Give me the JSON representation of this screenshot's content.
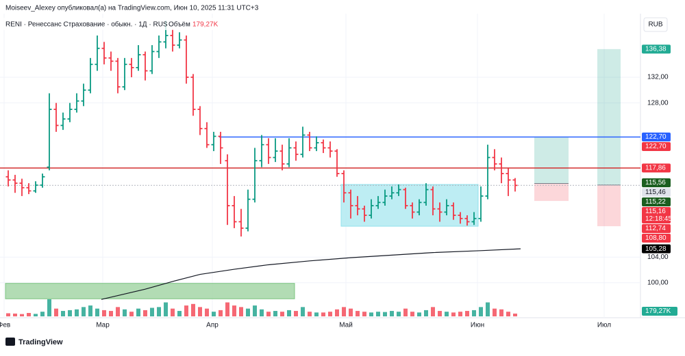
{
  "header": {
    "publisher": "Moiseev_Alexey опубликовал(а) на TradingView.com, Июн 10, 2025 11:31 UTC+3",
    "symbol": "RENI · Ренессанс Страхование · обыкн. · 1Д · RUS",
    "volume_title": "Объём"
  },
  "currency": "RUB",
  "brand": "TradingView",
  "chart_data": {
    "type": "ohlc",
    "up_color": "#089981",
    "down_color": "#f23645",
    "xlim": [
      -1.2,
      92.3
    ],
    "ylim": [
      94.55,
      141.9
    ],
    "xticks": [
      {
        "value": -0.6,
        "label": "Фев"
      },
      {
        "value": 13.8,
        "label": "Мар"
      },
      {
        "value": 29.8,
        "label": "Апр"
      },
      {
        "value": 49.3,
        "label": "Май"
      },
      {
        "value": 68.5,
        "label": "Июн"
      },
      {
        "value": 87,
        "label": "Июл"
      }
    ],
    "yticks": [
      {
        "value": 100,
        "label": "100,00"
      },
      {
        "value": 104,
        "label": "104,00"
      },
      {
        "value": 128,
        "label": "128,00"
      },
      {
        "value": 132,
        "label": "132,00"
      }
    ],
    "ohlc": [
      [
        116.5,
        117.5,
        115,
        116
      ],
      [
        116,
        116.8,
        114,
        115.5
      ],
      [
        115.5,
        116.2,
        113.5,
        114.8
      ],
      [
        114.8,
        115.5,
        113.8,
        114.3
      ],
      [
        114.3,
        115.8,
        114,
        115.2
      ],
      [
        115.2,
        117,
        114.8,
        116.5
      ],
      [
        118,
        129.5,
        117.5,
        127
      ],
      [
        127,
        128,
        123.5,
        124.5
      ],
      [
        124.5,
        126.5,
        123.8,
        125.5
      ],
      [
        125.5,
        128,
        125,
        127
      ],
      [
        127,
        129.5,
        126.5,
        128.3
      ],
      [
        128.3,
        131,
        127.5,
        130
      ],
      [
        130,
        135,
        129.5,
        134
      ],
      [
        134,
        138.5,
        133,
        136.5
      ],
      [
        136.5,
        137.5,
        134,
        135
      ],
      [
        135,
        136,
        133,
        134.5
      ],
      [
        134.5,
        135,
        129.5,
        130.5
      ],
      [
        130.5,
        135,
        130,
        134
      ],
      [
        134,
        135,
        132,
        133.5
      ],
      [
        133.5,
        137,
        133,
        135.5
      ],
      [
        135.5,
        136,
        131.5,
        133
      ],
      [
        133,
        137,
        132.5,
        136
      ],
      [
        136,
        138.5,
        135,
        137.5
      ],
      [
        137.5,
        140.8,
        136.5,
        138.5
      ],
      [
        138.5,
        139.5,
        136,
        137
      ],
      [
        137,
        139,
        136.5,
        137.8
      ],
      [
        137.8,
        138.5,
        131,
        132
      ],
      [
        132,
        132.5,
        126,
        127
      ],
      [
        127,
        127.5,
        123,
        124
      ],
      [
        124,
        125,
        121,
        121.5
      ],
      [
        121.5,
        123.5,
        120.5,
        122.8
      ],
      [
        122.8,
        123.5,
        118.5,
        121
      ],
      [
        119,
        120,
        109,
        112
      ],
      [
        112,
        113.5,
        108.5,
        109.5
      ],
      [
        109.5,
        111.5,
        107.2,
        108.5
      ],
      [
        108.5,
        114.5,
        108,
        113
      ],
      [
        113,
        121,
        112.5,
        119
      ],
      [
        119,
        123,
        118,
        121.5
      ],
      [
        121.5,
        122.5,
        118.5,
        119.5
      ],
      [
        119.5,
        122.5,
        118.8,
        120.5
      ],
      [
        120.5,
        121.5,
        117.5,
        118.5
      ],
      [
        118.5,
        122.5,
        118,
        121
      ],
      [
        121,
        122,
        119,
        120
      ],
      [
        120,
        124.3,
        119.5,
        123
      ],
      [
        123,
        123.5,
        120.5,
        121
      ],
      [
        121,
        122.8,
        120.5,
        121.8
      ],
      [
        121.8,
        122.3,
        120.2,
        121
      ],
      [
        121,
        122,
        119.5,
        120.5
      ],
      [
        120.5,
        120.8,
        116.5,
        117
      ],
      [
        117,
        117.5,
        112.5,
        114
      ],
      [
        114,
        114.5,
        110,
        112
      ],
      [
        112,
        113.5,
        110.5,
        111.5
      ],
      [
        111.5,
        112,
        109.5,
        110.5
      ],
      [
        110.5,
        113,
        110,
        112
      ],
      [
        112,
        113.5,
        111.5,
        112.5
      ],
      [
        112.5,
        114.5,
        112,
        113.5
      ],
      [
        113.5,
        115,
        113,
        114
      ],
      [
        114,
        115.3,
        113.5,
        114.5
      ],
      [
        114.5,
        114.8,
        111.5,
        112
      ],
      [
        112,
        112.5,
        110,
        111
      ],
      [
        111,
        113,
        110.5,
        112.5
      ],
      [
        112.5,
        115.5,
        112,
        114.5
      ],
      [
        114.5,
        115,
        110.5,
        111.5
      ],
      [
        111.5,
        112.5,
        109.5,
        111
      ],
      [
        111,
        113,
        110.5,
        112
      ],
      [
        112,
        112.5,
        109.8,
        110.5
      ],
      [
        110.5,
        111,
        109.2,
        110
      ],
      [
        110,
        110.5,
        108.9,
        109.5
      ],
      [
        109.5,
        111,
        109,
        110
      ],
      [
        110,
        115,
        109.5,
        113.5
      ],
      [
        113.5,
        121.5,
        113,
        119.5
      ],
      [
        119.5,
        120.8,
        117.5,
        118.5
      ],
      [
        118.5,
        119.5,
        115.5,
        117
      ],
      [
        117,
        117.8,
        113.5,
        116
      ],
      [
        116,
        116.3,
        114.2,
        115.16
      ]
    ],
    "volume": [
      200,
      180,
      150,
      220,
      160,
      300,
      1100,
      500,
      350,
      400,
      450,
      600,
      700,
      500,
      400,
      350,
      600,
      450,
      300,
      500,
      400,
      550,
      600,
      900,
      500,
      350,
      700,
      800,
      600,
      500,
      300,
      400,
      900,
      700,
      600,
      500,
      700,
      450,
      300,
      350,
      300,
      400,
      350,
      600,
      300,
      250,
      250,
      300,
      450,
      600,
      500,
      350,
      300,
      250,
      300,
      280,
      350,
      300,
      500,
      300,
      250,
      400,
      600,
      350,
      300,
      250,
      300,
      350,
      400,
      600,
      900,
      500,
      450,
      300,
      179.27
    ],
    "volume_label": "179,27K",
    "ma": {
      "color": "#131722",
      "x": [
        13.6,
        20,
        24,
        28,
        33,
        38,
        44,
        50,
        56,
        62,
        69,
        74.8
      ],
      "values": [
        97.4,
        99,
        100.2,
        101.3,
        102.1,
        102.8,
        103.4,
        103.9,
        104.3,
        104.7,
        105,
        105.28
      ]
    },
    "lines": [
      {
        "value": 122.7,
        "from": 30.8,
        "color": "#2962ff",
        "style": "solid"
      },
      {
        "value": 117.86,
        "from": -1.2,
        "color": "#d32f2f",
        "style": "solid"
      },
      {
        "value": 115.16,
        "from": -1.2,
        "color": "#b2b5be",
        "style": "dotted"
      }
    ],
    "rects": [
      {
        "x": [
          48.6,
          68.6
        ],
        "y": [
          108.8,
          115.3
        ],
        "color": "#b2ebf2",
        "stroke": "#80deea"
      },
      {
        "x": [
          -0.4,
          41.8
        ],
        "y": [
          97.5,
          99.9
        ],
        "color": "#a5d6a7",
        "stroke": "#66bb6a"
      }
    ],
    "positions": [
      {
        "start": 76.8,
        "end": 81.8,
        "target": 122.7,
        "entry": 115.46,
        "stop": 112.74
      },
      {
        "start": 86,
        "end": 89.4,
        "target": 136.38,
        "entry": 115.22,
        "stop": 108.8
      }
    ],
    "badges": [
      {
        "value": 136.38,
        "label": "136,38",
        "color": "#22ab94"
      },
      {
        "value": 122.7,
        "label": "122,70",
        "color": "#2962ff"
      },
      {
        "value": 122.7,
        "label": "122,70",
        "color": "#f23645"
      },
      {
        "value": 117.86,
        "label": "117,86",
        "color": "#f23645"
      },
      {
        "value": 115.56,
        "label": "115,56",
        "color": "#1b5e20"
      },
      {
        "value": 115.46,
        "label": "115,46",
        "color": "#e0e3eb"
      },
      {
        "value": 115.22,
        "label": "115,22",
        "color": "#1b5e20"
      },
      {
        "value": 115.16,
        "label": "115,16",
        "color": "#f23645",
        "time": "12:18:45"
      },
      {
        "value": 112.74,
        "label": "112,74",
        "color": "#f23645"
      },
      {
        "value": 108.8,
        "label": "108,80",
        "color": "#f23645"
      },
      {
        "value": 105.28,
        "label": "105,28",
        "color": "#000000"
      }
    ]
  }
}
